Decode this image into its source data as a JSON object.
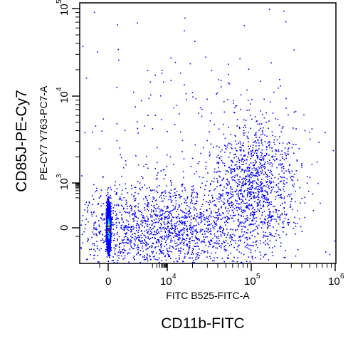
{
  "chart_data": {
    "type": "scatter",
    "title": "",
    "xlabel": "CD11b-FITC",
    "x_param_label": "FITC B525-FITC-A",
    "ylabel": "CD85J-PE-Cy7",
    "y_param_label": "PE-CY7 Y763-PC7-A",
    "x_scale": "biexponential",
    "y_scale": "biexponential",
    "xlim": [
      -2000,
      1000000
    ],
    "ylim": [
      -2000,
      100000
    ],
    "x_ticks": [
      {
        "base": "0",
        "exp": "",
        "value": 0
      },
      {
        "base": "10",
        "exp": "4",
        "value": 10000
      },
      {
        "base": "10",
        "exp": "5",
        "value": 100000
      },
      {
        "base": "10",
        "exp": "6",
        "value": 1000000
      }
    ],
    "y_ticks": [
      {
        "base": "0",
        "exp": "",
        "value": 0
      },
      {
        "base": "10",
        "exp": "3",
        "value": 1000
      },
      {
        "base": "10",
        "exp": "4",
        "value": 10000
      },
      {
        "base": "10",
        "exp": "5",
        "value": 100000
      }
    ],
    "grid": false,
    "legend": "none",
    "density_colors": [
      "#0000ff",
      "#00c8ff",
      "#00ff80",
      "#ffff00",
      "#ff0000"
    ],
    "populations": [
      {
        "name": "",
        "x_center": 0,
        "y_center": 0,
        "x_spread_decades": 0.03,
        "y_spread_decades": 0.35,
        "relative_density": 1.0,
        "approx_fraction": 0.55
      },
      {
        "name": "",
        "x_center": 5000,
        "y_center": 0,
        "x_spread_decades": 0.6,
        "y_spread_decades": 0.25,
        "relative_density": 0.15,
        "approx_fraction": 0.25
      },
      {
        "name": "",
        "x_center": 110000,
        "y_center": 1000,
        "x_spread_decades": 0.25,
        "y_spread_decades": 0.35,
        "relative_density": 0.3,
        "approx_fraction": 0.15
      },
      {
        "name": "",
        "x_center": 20000,
        "y_center": 2000,
        "x_spread_decades": 0.8,
        "y_spread_decades": 0.9,
        "relative_density": 0.02,
        "approx_fraction": 0.05
      }
    ]
  }
}
